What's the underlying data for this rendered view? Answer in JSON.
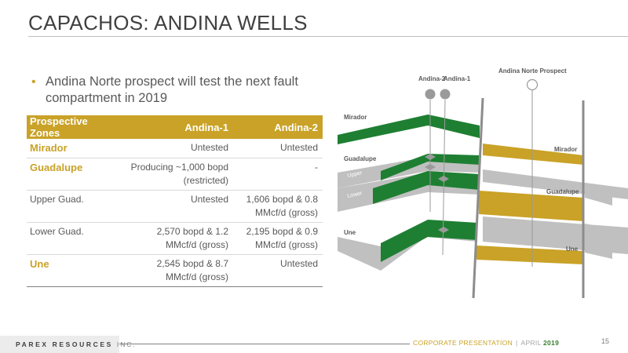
{
  "slide": {
    "title": "CAPACHOS: ANDINA WELLS",
    "page_number": "15"
  },
  "bullet": {
    "text": "Andina Norte prospect will test the next fault compartment in 2019"
  },
  "table": {
    "headers": [
      "Prospective Zones",
      "Andina-1",
      "Andina-2"
    ],
    "rows": [
      {
        "zone": "Mirador",
        "andina1": "Untested",
        "andina2": "Untested",
        "highlight": true
      },
      {
        "zone": "Guadalupe",
        "andina1": "Producing ~1,000 bopd (restricted)",
        "andina2": "-",
        "highlight": true
      },
      {
        "zone": "Upper Guad.",
        "andina1": "Untested",
        "andina2": "1,606 bopd & 0.8 MMcf/d (gross)",
        "highlight": false
      },
      {
        "zone": "Lower Guad.",
        "andina1": "2,570 bopd & 1.2 MMcf/d (gross)",
        "andina2": "2,195 bopd & 0.9 MMcf/d (gross)",
        "highlight": false
      },
      {
        "zone": "Une",
        "andina1": "2,545 bopd & 8.7 MMcf/d (gross)",
        "andina2": "Untested",
        "highlight": true
      }
    ]
  },
  "diagram": {
    "wells": {
      "andina2": "Andina-2",
      "andina1": "Andina-1",
      "prospect": "Andina Norte Prospect"
    },
    "left_labels": {
      "mirador": "Mirador",
      "guadalupe": "Guadalupe",
      "upper": "Upper",
      "lower": "Lower",
      "une": "Une"
    },
    "right_labels": {
      "mirador": "Mirador",
      "guadalupe": "Guadalupe",
      "une": "Une"
    },
    "colors": {
      "green": "#1e7f32",
      "gold": "#c9a227",
      "gray": "#c0c0c0",
      "fault": "#8c8c8c"
    }
  },
  "footer": {
    "brand": "PAREX RESOURCES",
    "brand_suffix": "INC.",
    "presentation": "CORPORATE PRESENTATION",
    "separator": "|",
    "month": "APRIL",
    "year": "2019"
  }
}
